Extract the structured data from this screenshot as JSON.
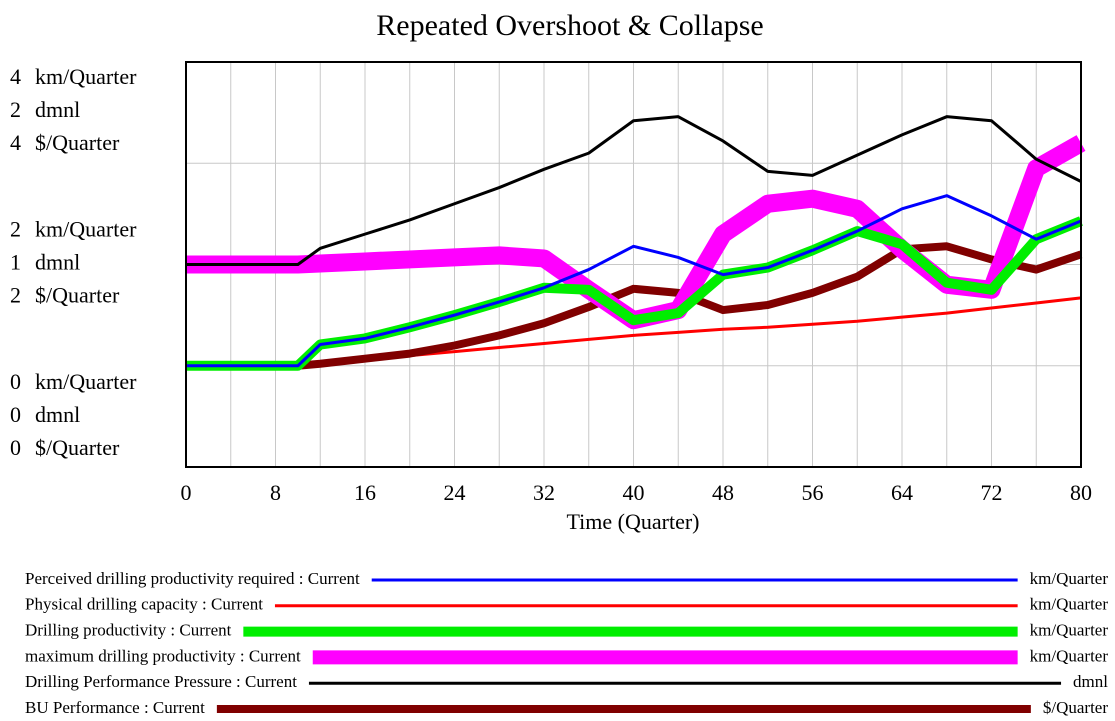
{
  "chart_data": {
    "type": "line",
    "title": "Repeated Overshoot & Collapse",
    "xlabel": "Time (Quarter)",
    "xlim": [
      0,
      80
    ],
    "xticks": [
      0,
      8,
      16,
      24,
      32,
      40,
      48,
      56,
      64,
      72,
      80
    ],
    "xgrid": [
      4,
      8,
      12,
      16,
      20,
      24,
      28,
      32,
      36,
      40,
      44,
      48,
      52,
      56,
      60,
      64,
      68,
      72,
      76
    ],
    "ygrid": [
      1,
      2,
      3
    ],
    "axes": [
      {
        "unit": "km/Quarter",
        "ylim": [
          0,
          4
        ],
        "yticks": [
          0,
          2,
          4
        ]
      },
      {
        "unit": "dmnl",
        "ylim": [
          0,
          2
        ],
        "yticks": [
          0,
          1,
          2
        ]
      },
      {
        "unit": "$/Quarter",
        "ylim": [
          0,
          4
        ],
        "yticks": [
          0,
          2,
          4
        ]
      }
    ],
    "x": [
      0,
      4,
      8,
      10,
      12,
      16,
      20,
      24,
      28,
      32,
      36,
      40,
      44,
      48,
      52,
      56,
      60,
      64,
      68,
      72,
      76,
      80
    ],
    "series": [
      {
        "name": "Perceived drilling productivity required : Current",
        "unit": "km/Quarter",
        "axis": 0,
        "color": "#0000ff",
        "width": 3,
        "values": [
          1.0,
          1.0,
          1.0,
          1.0,
          1.21,
          1.27,
          1.38,
          1.5,
          1.63,
          1.77,
          1.95,
          2.18,
          2.07,
          1.9,
          1.97,
          2.14,
          2.33,
          2.55,
          2.68,
          2.48,
          2.25,
          2.43
        ]
      },
      {
        "name": "Physical drilling capacity : Current",
        "unit": "km/Quarter",
        "axis": 0,
        "color": "#ff0000",
        "width": 3,
        "values": [
          1.0,
          1.0,
          1.0,
          1.0,
          1.02,
          1.06,
          1.1,
          1.14,
          1.18,
          1.22,
          1.26,
          1.3,
          1.33,
          1.36,
          1.38,
          1.41,
          1.44,
          1.48,
          1.52,
          1.57,
          1.62,
          1.67
        ]
      },
      {
        "name": "Drilling productivity : Current",
        "unit": "km/Quarter",
        "axis": 0,
        "color": "#00ee00",
        "width": 10,
        "values": [
          1.0,
          1.0,
          1.0,
          1.0,
          1.21,
          1.27,
          1.38,
          1.5,
          1.63,
          1.77,
          1.75,
          1.45,
          1.52,
          1.9,
          1.97,
          2.14,
          2.33,
          2.2,
          1.82,
          1.75,
          2.25,
          2.43
        ]
      },
      {
        "name": "maximum drilling productivity : Current",
        "unit": "km/Quarter",
        "axis": 0,
        "color": "#ff00ff",
        "width": 18,
        "values": [
          2.0,
          2.0,
          2.0,
          2.0,
          2.01,
          2.03,
          2.05,
          2.07,
          2.09,
          2.06,
          1.75,
          1.45,
          1.55,
          2.3,
          2.6,
          2.65,
          2.55,
          2.15,
          1.8,
          1.75,
          2.95,
          3.2
        ]
      },
      {
        "name": "Drilling Performance Pressure : Current",
        "unit": "dmnl",
        "axis": 1,
        "color": "#000000",
        "width": 3,
        "values": [
          1.0,
          1.0,
          1.0,
          1.0,
          1.08,
          1.15,
          1.22,
          1.3,
          1.38,
          1.47,
          1.55,
          1.71,
          1.73,
          1.61,
          1.46,
          1.44,
          1.54,
          1.64,
          1.73,
          1.71,
          1.52,
          1.41
        ]
      },
      {
        "name": "BU Performance : Current",
        "unit": "$/Quarter",
        "axis": 2,
        "color": "#800000",
        "width": 8,
        "values": [
          1.0,
          1.0,
          1.0,
          1.0,
          1.02,
          1.07,
          1.12,
          1.2,
          1.3,
          1.42,
          1.58,
          1.76,
          1.72,
          1.55,
          1.6,
          1.72,
          1.88,
          2.15,
          2.18,
          2.05,
          1.95,
          2.1
        ]
      }
    ]
  }
}
